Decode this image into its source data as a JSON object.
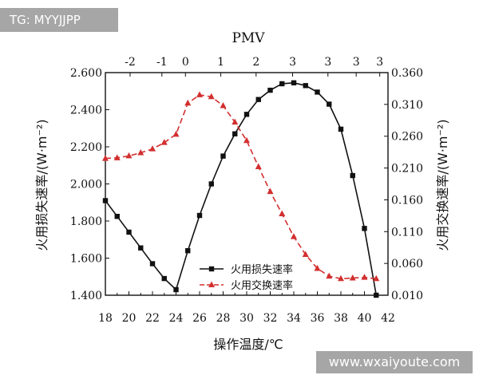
{
  "watermarks": {
    "top_left": "TG: MYYJJPP",
    "bottom_right": "www.wxaiyoute.com"
  },
  "chart_data": {
    "type": "line",
    "xlabel": "操作温度/℃",
    "ylabel_left": "火用损失速率/(W·m⁻²)",
    "ylabel_right": "火用交换速率/(W·m⁻²)",
    "top_axis_title": "PMV",
    "xlim": [
      18,
      42
    ],
    "ylim_left": [
      1.4,
      2.6
    ],
    "ylim_right": [
      0.01,
      0.36
    ],
    "x_ticks": [
      "18",
      "20",
      "22",
      "24",
      "26",
      "28",
      "30",
      "32",
      "34",
      "36",
      "38",
      "40",
      "42"
    ],
    "y_left_ticks": [
      "1.400",
      "1.600",
      "1.800",
      "2.000",
      "2.200",
      "2.400",
      "2.600"
    ],
    "y_right_ticks": [
      "0.010",
      "0.060",
      "0.110",
      "0.160",
      "0.210",
      "0.260",
      "0.310",
      "0.360"
    ],
    "pmv_ticks": [
      {
        "x": 20.1,
        "label": "-2"
      },
      {
        "x": 22.8,
        "label": "-1"
      },
      {
        "x": 24.8,
        "label": "0"
      },
      {
        "x": 27.8,
        "label": "1"
      },
      {
        "x": 30.8,
        "label": "2"
      },
      {
        "x": 33.9,
        "label": "3"
      },
      {
        "x": 36.9,
        "label": "3"
      },
      {
        "x": 39.3,
        "label": "3"
      },
      {
        "x": 41.3,
        "label": "3"
      }
    ],
    "grid": false,
    "legend_position": "bottom-center",
    "series": [
      {
        "name": "火用损失速率",
        "axis": "left",
        "color": "#111111",
        "marker": "square",
        "line_style": "solid",
        "x": [
          18,
          19,
          20,
          21,
          22,
          23,
          24,
          25,
          26,
          27,
          28,
          29,
          30,
          31,
          32,
          33,
          34,
          35,
          36,
          37,
          38,
          39,
          40,
          41
        ],
        "y": [
          1.91,
          1.825,
          1.74,
          1.655,
          1.57,
          1.49,
          1.43,
          1.64,
          1.83,
          2.0,
          2.15,
          2.27,
          2.375,
          2.455,
          2.505,
          2.54,
          2.545,
          2.53,
          2.495,
          2.43,
          2.295,
          2.045,
          1.76,
          1.4
        ]
      },
      {
        "name": "火用交换速率",
        "axis": "right",
        "color": "#d32f2f",
        "marker": "triangle",
        "line_style": "dashed",
        "x": [
          18,
          19,
          20,
          21,
          22,
          23,
          24,
          25,
          26,
          27,
          28,
          29,
          30,
          31,
          32,
          33,
          34,
          35,
          36,
          37,
          38,
          39,
          40,
          41
        ],
        "y": [
          0.225,
          0.226,
          0.229,
          0.234,
          0.24,
          0.25,
          0.263,
          0.312,
          0.325,
          0.322,
          0.308,
          0.282,
          0.253,
          0.212,
          0.173,
          0.138,
          0.102,
          0.074,
          0.052,
          0.04,
          0.036,
          0.037,
          0.038,
          0.036
        ]
      }
    ]
  }
}
